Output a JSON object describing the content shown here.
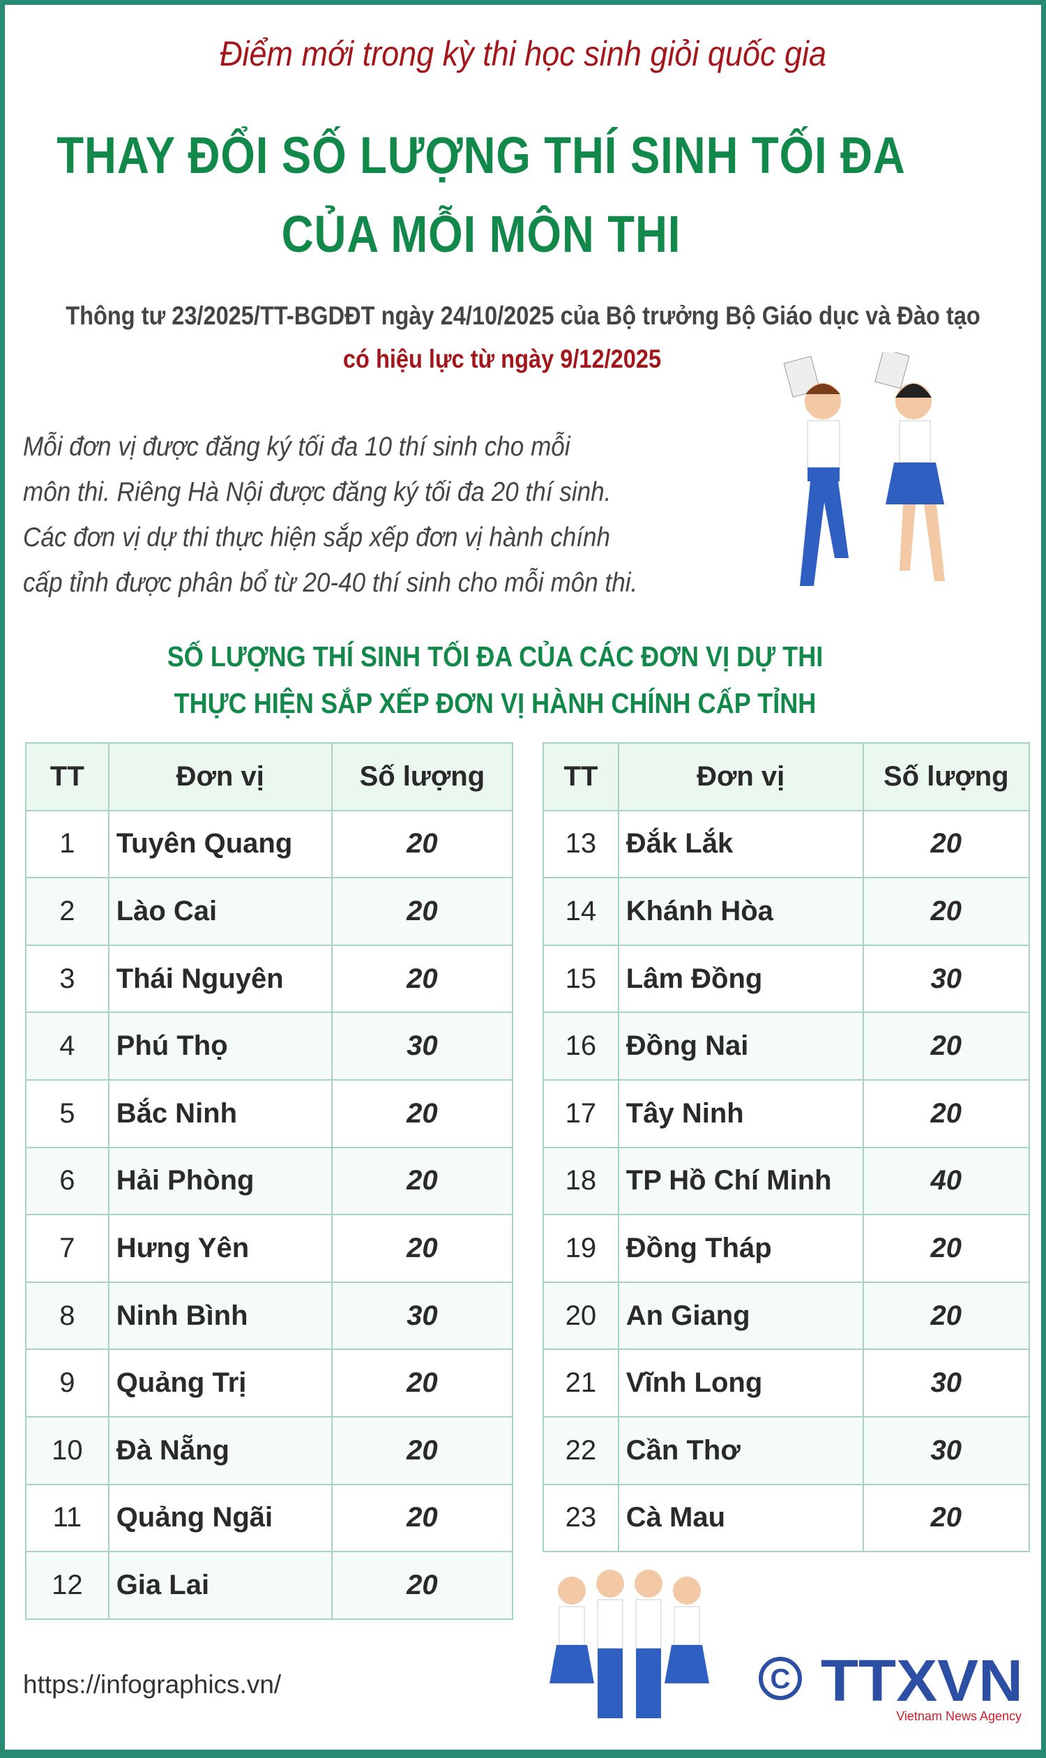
{
  "subtitle": "Điểm mới trong kỳ thi học sinh giỏi quốc gia",
  "title_line1": "THAY ĐỔI SỐ LƯỢNG THÍ SINH TỐI ĐA",
  "title_line2": "CỦA MỖI MÔN THI",
  "reference": "Thông tư 23/2025/TT-BGDĐT ngày 24/10/2025 của Bộ trưởng Bộ Giáo dục và Đào tạo",
  "effective": "có hiệu lực từ ngày 9/12/2025",
  "paragraph": [
    "Mỗi đơn vị được đăng ký tối đa 10 thí sinh cho mỗi",
    "môn thi. Riêng Hà Nội được đăng ký tối đa 20 thí sinh.",
    "Các đơn vị dự thi thực hiện sắp xếp đơn vị hành chính",
    "cấp tỉnh được phân bổ từ 20-40 thí sinh cho mỗi môn thi."
  ],
  "section_title_line1": "SỐ LƯỢNG THÍ SINH TỐI ĐA CỦA CÁC ĐƠN VỊ DỰ THI",
  "section_title_line2": "THỰC HIỆN SẮP XẾP ĐƠN VỊ HÀNH CHÍNH CẤP TỈNH",
  "table": {
    "headers": [
      "TT",
      "Đơn vị",
      "Số lượng"
    ],
    "left": [
      [
        "1",
        "Tuyên Quang",
        "20"
      ],
      [
        "2",
        "Lào Cai",
        "20"
      ],
      [
        "3",
        "Thái Nguyên",
        "20"
      ],
      [
        "4",
        "Phú Thọ",
        "30"
      ],
      [
        "5",
        "Bắc Ninh",
        "20"
      ],
      [
        "6",
        "Hải Phòng",
        "20"
      ],
      [
        "7",
        "Hưng Yên",
        "20"
      ],
      [
        "8",
        "Ninh Bình",
        "30"
      ],
      [
        "9",
        "Quảng Trị",
        "20"
      ],
      [
        "10",
        "Đà Nẵng",
        "20"
      ],
      [
        "11",
        "Quảng Ngãi",
        "20"
      ],
      [
        "12",
        "Gia Lai",
        "20"
      ]
    ],
    "right": [
      [
        "13",
        "Đắk Lắk",
        "20"
      ],
      [
        "14",
        "Khánh Hòa",
        "20"
      ],
      [
        "15",
        "Lâm Đồng",
        "30"
      ],
      [
        "16",
        "Đồng Nai",
        "20"
      ],
      [
        "17",
        "Tây Ninh",
        "20"
      ],
      [
        "18",
        "TP Hồ Chí Minh",
        "40"
      ],
      [
        "19",
        "Đồng Tháp",
        "20"
      ],
      [
        "20",
        "An Giang",
        "20"
      ],
      [
        "21",
        "Vĩnh Long",
        "30"
      ],
      [
        "22",
        "Cần Thơ",
        "30"
      ],
      [
        "23",
        "Cà Mau",
        "20"
      ]
    ]
  },
  "footer": {
    "url": "https://infographics.vn/",
    "logo_text": "TTXVN",
    "logo_sub": "Vietnam News Agency"
  },
  "colors": {
    "border": "#278a72",
    "title_green": "#12894a",
    "accent_red": "#a3161c",
    "header_bg": "#eaf8ef",
    "logo_blue": "#2c4fa3"
  }
}
